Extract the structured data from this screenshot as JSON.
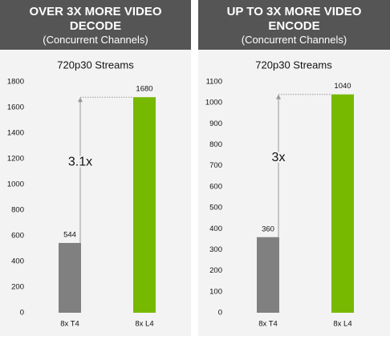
{
  "chart_data": [
    {
      "type": "bar",
      "title": "OVER 3X MORE VIDEO DECODE",
      "subtitle": "(Concurrent Channels)",
      "plot_title": "720p30 Streams",
      "categories": [
        "8x T4",
        "8x L4"
      ],
      "values": [
        544,
        1680
      ],
      "colors": [
        "#808080",
        "#76b900"
      ],
      "ylim": [
        0,
        1800
      ],
      "yticks": [
        0,
        200,
        400,
        600,
        800,
        1000,
        1200,
        1400,
        1600,
        1800
      ],
      "annotation": "3.1x"
    },
    {
      "type": "bar",
      "title": "UP TO 3X MORE VIDEO ENCODE",
      "subtitle": "(Concurrent Channels)",
      "plot_title": "720p30 Streams",
      "categories": [
        "8x T4",
        "8x L4"
      ],
      "values": [
        360,
        1040
      ],
      "colors": [
        "#808080",
        "#76b900"
      ],
      "ylim": [
        0,
        1100
      ],
      "yticks": [
        0,
        100,
        200,
        300,
        400,
        500,
        600,
        700,
        800,
        900,
        1000,
        1100
      ],
      "annotation": "3x"
    }
  ]
}
